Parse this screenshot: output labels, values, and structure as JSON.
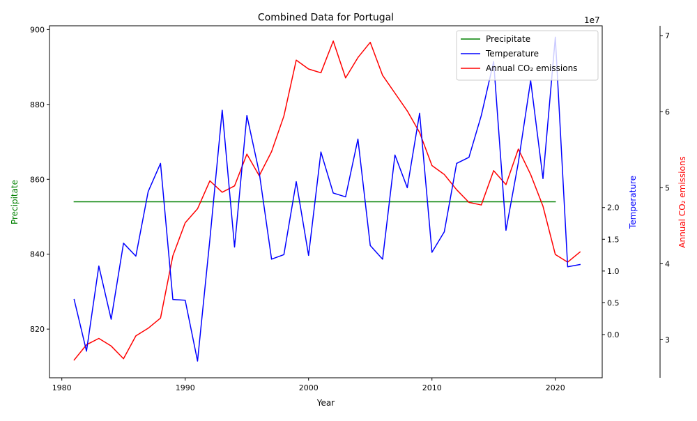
{
  "chart_data": {
    "type": "line",
    "title": "Combined Data for Portugal",
    "xlabel": "Year",
    "x_ticks": [
      1980,
      1990,
      2000,
      2010,
      2020
    ],
    "xlim": [
      1979.0,
      2023.8
    ],
    "left_axis": {
      "label": "Precipitate",
      "color": "#008000",
      "ylim": [
        807.0,
        901.0
      ],
      "ticks": [
        820,
        840,
        860,
        880,
        900
      ]
    },
    "right_axis_1": {
      "label": "Temperature",
      "color": "#0000ff",
      "ylim": [
        -3.4,
        24.3
      ],
      "ticks": [
        0.0,
        0.5,
        1.0,
        1.5,
        2.0
      ],
      "tick_scale": 5,
      "offset_label": "1e7"
    },
    "right_axis_2": {
      "label": "Annual CO₂ emissions",
      "color": "#ff0000",
      "ylim": [
        2.5,
        7.13
      ],
      "ticks": [
        3,
        4,
        5,
        6,
        7
      ]
    },
    "legend": {
      "position": "top-right",
      "entries": [
        "Precipitate",
        "Temperature",
        "Annual CO₂ emissions"
      ]
    },
    "series": [
      {
        "name": "Precipitate",
        "axis": "left",
        "color": "#008000",
        "x": [
          1981,
          1982,
          1983,
          1984,
          1985,
          1986,
          1987,
          1988,
          1989,
          1990,
          1991,
          1992,
          1993,
          1994,
          1995,
          1996,
          1997,
          1998,
          1999,
          2000,
          2001,
          2002,
          2003,
          2004,
          2005,
          2006,
          2007,
          2008,
          2009,
          2010,
          2011,
          2012,
          2013,
          2014,
          2015,
          2016,
          2017,
          2018,
          2019,
          2020
        ],
        "y": [
          854,
          854,
          854,
          854,
          854,
          854,
          854,
          854,
          854,
          854,
          854,
          854,
          854,
          854,
          854,
          854,
          854,
          854,
          854,
          854,
          854,
          854,
          854,
          854,
          854,
          854,
          854,
          854,
          854,
          854,
          854,
          854,
          854,
          854,
          854,
          854,
          854,
          854,
          854,
          854
        ]
      },
      {
        "name": "Annual CO₂ emissions",
        "axis": "right_1",
        "color": "#ff0000",
        "x": [
          1981,
          1982,
          1983,
          1984,
          1985,
          1986,
          1987,
          1988,
          1989,
          1990,
          1991,
          1992,
          1993,
          1994,
          1995,
          1996,
          1997,
          1998,
          1999,
          2000,
          2001,
          2002,
          2003,
          2004,
          2005,
          2006,
          2007,
          2008,
          2009,
          2010,
          2011,
          2012,
          2013,
          2014,
          2015,
          2016,
          2017,
          2018,
          2019,
          2020,
          2021,
          2022
        ],
        "y": [
          -2.0,
          -0.8,
          -0.3,
          -0.9,
          -1.9,
          -0.1,
          0.5,
          1.3,
          6.2,
          8.8,
          9.9,
          12.1,
          11.2,
          11.7,
          14.2,
          12.5,
          14.4,
          17.2,
          21.6,
          20.9,
          20.6,
          23.1,
          20.2,
          21.8,
          23.0,
          20.4,
          19.0,
          17.6,
          15.9,
          13.3,
          12.6,
          11.4,
          10.4,
          10.2,
          12.9,
          11.8,
          14.6,
          12.6,
          10.1,
          6.3,
          5.7,
          6.5
        ]
      },
      {
        "name": "Temperature",
        "axis": "right_2",
        "color": "#0000ff",
        "x": [
          1981,
          1982,
          1983,
          1984,
          1985,
          1986,
          1987,
          1988,
          1989,
          1990,
          1991,
          1992,
          1993,
          1994,
          1995,
          1996,
          1997,
          1998,
          1999,
          2000,
          2001,
          2002,
          2003,
          2004,
          2005,
          2006,
          2007,
          2008,
          2009,
          2010,
          2011,
          2012,
          2013,
          2014,
          2015,
          2016,
          2017,
          2018,
          2019,
          2020,
          2021,
          2022
        ],
        "y": [
          3.53,
          2.85,
          3.97,
          3.27,
          4.27,
          4.1,
          4.95,
          5.32,
          3.53,
          3.52,
          2.72,
          4.32,
          6.02,
          4.22,
          5.95,
          5.2,
          4.06,
          4.12,
          5.08,
          4.11,
          5.47,
          4.93,
          4.88,
          5.64,
          4.24,
          4.06,
          5.43,
          5.0,
          5.98,
          4.15,
          4.42,
          5.32,
          5.4,
          5.95,
          6.66,
          4.44,
          5.33,
          6.41,
          5.12,
          6.98,
          3.96,
          3.99
        ]
      }
    ]
  }
}
